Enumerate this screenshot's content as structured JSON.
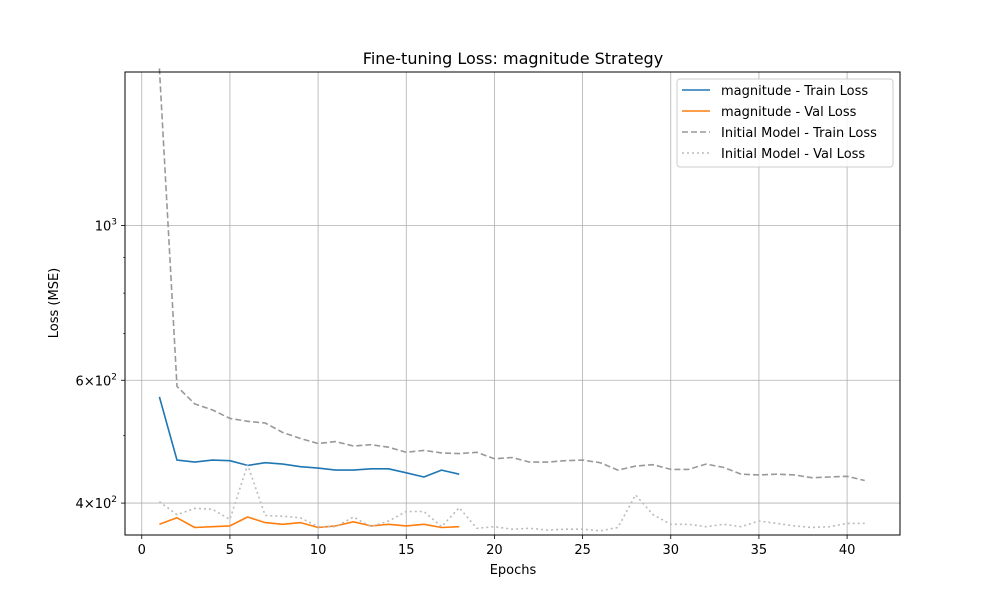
{
  "chart_data": {
    "type": "line",
    "title": "Fine-tuning Loss: magnitude Strategy",
    "xlabel": "Epochs",
    "ylabel": "Loss (MSE)",
    "xscale": "linear",
    "yscale": "log",
    "xlim": [
      -0.95,
      43.0
    ],
    "ylim": [
      360,
      1660
    ],
    "grid": true,
    "legend_position": "top-right",
    "x_ticks": [
      0,
      5,
      10,
      15,
      20,
      25,
      30,
      35,
      40
    ],
    "x_tick_labels": [
      "0",
      "5",
      "10",
      "15",
      "20",
      "25",
      "30",
      "35",
      "40"
    ],
    "y_ticks": [
      {
        "value": 400,
        "base": "4",
        "mult": "10",
        "exp": "2"
      },
      {
        "value": 600,
        "base": "6",
        "mult": "10",
        "exp": "2"
      },
      {
        "value": 1000,
        "base": "",
        "mult": "10",
        "exp": "3"
      }
    ],
    "y_minor_ticks": [
      500,
      700,
      800,
      900
    ],
    "series": [
      {
        "name": "magnitude - Train Loss",
        "color": "#1f77b4",
        "dash": "solid",
        "x": [
          1,
          2,
          3,
          4,
          5,
          6,
          7,
          8,
          9,
          10,
          11,
          12,
          13,
          14,
          15,
          16,
          17,
          18
        ],
        "y": [
          568,
          461,
          458,
          461,
          460,
          453,
          457,
          455,
          451,
          449,
          446,
          446,
          448,
          448,
          442,
          436,
          446,
          440
        ]
      },
      {
        "name": "magnitude - Val Loss",
        "color": "#ff7f0e",
        "dash": "solid",
        "x": [
          1,
          2,
          3,
          4,
          5,
          6,
          7,
          8,
          9,
          10,
          11,
          12,
          13,
          14,
          15,
          16,
          17,
          18
        ],
        "y": [
          373,
          381,
          369,
          370,
          371,
          382,
          375,
          373,
          375,
          369,
          371,
          376,
          371,
          373,
          371,
          373,
          369,
          370
        ]
      },
      {
        "name": "Initial Model - Train Loss",
        "color": "#999999",
        "dash": "dashed",
        "x": [
          1,
          2,
          3,
          4,
          5,
          6,
          7,
          8,
          9,
          10,
          11,
          12,
          13,
          14,
          15,
          16,
          17,
          18,
          19,
          20,
          21,
          22,
          23,
          24,
          25,
          26,
          27,
          28,
          29,
          30,
          31,
          32,
          33,
          34,
          35,
          36,
          37,
          38,
          39,
          40,
          41
        ],
        "y": [
          1680,
          588,
          555,
          544,
          529,
          524,
          521,
          505,
          495,
          487,
          490,
          483,
          485,
          481,
          473,
          476,
          472,
          471,
          473,
          463,
          465,
          458,
          458,
          460,
          461,
          457,
          446,
          452,
          454,
          447,
          447,
          455,
          450,
          440,
          439,
          440,
          439,
          435,
          436,
          437,
          431
        ]
      },
      {
        "name": "Initial Model - Val Loss",
        "color": "#bbbbbb",
        "dash": "dotted",
        "x": [
          1,
          2,
          3,
          4,
          5,
          6,
          7,
          8,
          9,
          10,
          11,
          12,
          13,
          14,
          15,
          16,
          17,
          18,
          19,
          20,
          21,
          22,
          23,
          24,
          25,
          26,
          27,
          28,
          29,
          30,
          31,
          32,
          33,
          34,
          35,
          36,
          37,
          38,
          39,
          40,
          41
        ],
        "y": [
          402,
          385,
          393,
          392,
          379,
          454,
          384,
          383,
          381,
          370,
          370,
          382,
          370,
          377,
          389,
          389,
          370,
          394,
          368,
          370,
          367,
          368,
          366,
          367,
          367,
          365,
          369,
          411,
          385,
          373,
          373,
          370,
          373,
          370,
          377,
          374,
          371,
          369,
          370,
          374,
          374
        ]
      }
    ]
  }
}
